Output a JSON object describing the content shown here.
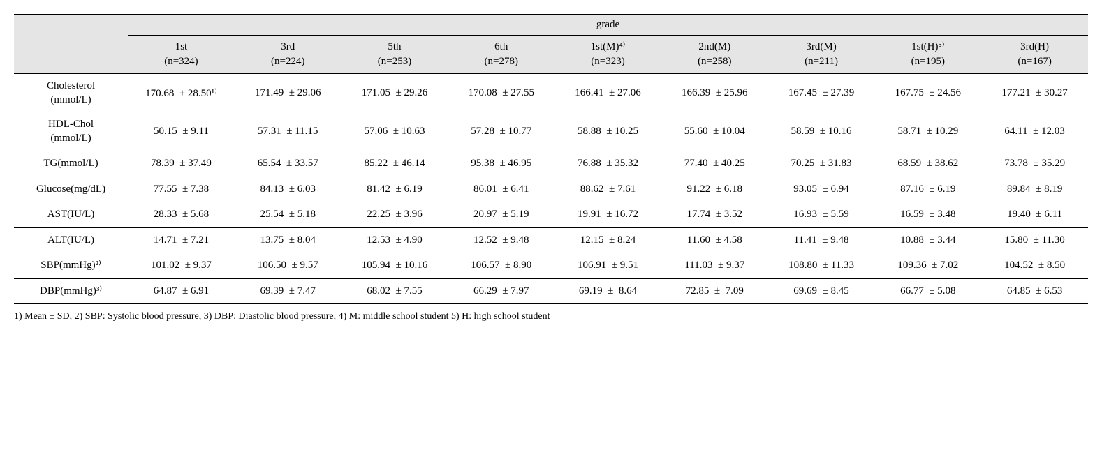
{
  "header": {
    "group_title": "grade"
  },
  "columns": [
    {
      "line1": "1st",
      "line2": "(n=324)"
    },
    {
      "line1": "3rd",
      "line2": "(n=224)"
    },
    {
      "line1": "5th",
      "line2": "(n=253)"
    },
    {
      "line1": "6th",
      "line2": "(n=278)"
    },
    {
      "line1": "1st(M)⁴⁾",
      "line2": "(n=323)"
    },
    {
      "line1": "2nd(M)",
      "line2": "(n=258)"
    },
    {
      "line1": "3rd(M)",
      "line2": "(n=211)"
    },
    {
      "line1": "1st(H)⁵⁾",
      "line2": "(n=195)"
    },
    {
      "line1": "3rd(H)",
      "line2": "(n=167)"
    }
  ],
  "rows": [
    {
      "label_line1": "Cholesterol",
      "label_line2": "(mmol/L)",
      "group_first": true,
      "values": [
        "170.68  ± 28.50¹⁾",
        "171.49  ± 29.06",
        "171.05  ± 29.26",
        "170.08  ± 27.55",
        "166.41  ± 27.06",
        "166.39  ± 25.96",
        "167.45  ± 27.39",
        "167.75  ± 24.56",
        "177.21  ± 30.27"
      ]
    },
    {
      "label_line1": "HDL-Chol",
      "label_line2": "(mmol/L)",
      "values": [
        "50.15  ± 9.11",
        "57.31  ± 11.15",
        "57.06  ± 10.63",
        "57.28  ± 10.77",
        "58.88  ± 10.25",
        "55.60  ± 10.04",
        "58.59  ± 10.16",
        "58.71  ± 10.29",
        "64.11  ± 12.03"
      ]
    },
    {
      "label_line1": "TG(mmol/L)",
      "label_line2": "",
      "values": [
        "78.39  ± 37.49",
        "65.54  ± 33.57",
        "85.22  ± 46.14",
        "95.38  ± 46.95",
        "76.88  ± 35.32",
        "77.40  ± 40.25",
        "70.25  ± 31.83",
        "68.59  ± 38.62",
        "73.78  ± 35.29"
      ]
    },
    {
      "label_line1": "Glucose(mg/dL)",
      "label_line2": "",
      "values": [
        "77.55  ± 7.38",
        "84.13  ± 6.03",
        "81.42  ± 6.19",
        "86.01  ± 6.41",
        "88.62  ± 7.61",
        "91.22  ± 6.18",
        "93.05  ± 6.94",
        "87.16  ± 6.19",
        "89.84  ± 8.19"
      ]
    },
    {
      "label_line1": "AST(IU/L)",
      "label_line2": "",
      "values": [
        "28.33  ± 5.68",
        "25.54  ± 5.18",
        "22.25  ± 3.96",
        "20.97  ± 5.19",
        "19.91  ± 16.72",
        "17.74  ± 3.52",
        "16.93  ± 5.59",
        "16.59  ± 3.48",
        "19.40  ± 6.11"
      ]
    },
    {
      "label_line1": "ALT(IU/L)",
      "label_line2": "",
      "values": [
        "14.71  ± 7.21",
        "13.75  ± 8.04",
        "12.53  ± 4.90",
        "12.52  ± 9.48",
        "12.15  ± 8.24",
        "11.60  ± 4.58",
        "11.41  ± 9.48",
        "10.88  ± 3.44",
        "15.80  ± 11.30"
      ]
    },
    {
      "label_line1": "SBP(mmHg)²⁾",
      "label_line2": "",
      "values": [
        "101.02  ± 9.37",
        "106.50  ± 9.57",
        "105.94  ± 10.16",
        "106.57  ± 8.90",
        "106.91  ± 9.51",
        "111.03  ± 9.37",
        "108.80  ± 11.33",
        "109.36  ± 7.02",
        "104.52  ± 8.50"
      ]
    },
    {
      "label_line1": "DBP(mmHg)³⁾",
      "label_line2": "",
      "values": [
        "64.87  ± 6.91",
        "69.39  ± 7.47",
        "68.02  ± 7.55",
        "66.29  ± 7.97",
        "69.19  ±  8.64",
        "72.85  ±  7.09",
        "69.69  ± 8.45",
        "66.77  ± 5.08",
        "64.85  ± 6.53"
      ]
    }
  ],
  "footnote": "1) Mean ± SD, 2) SBP: Systolic blood pressure, 3) DBP: Diastolic blood pressure, 4) M: middle school student  5) H: high school student"
}
